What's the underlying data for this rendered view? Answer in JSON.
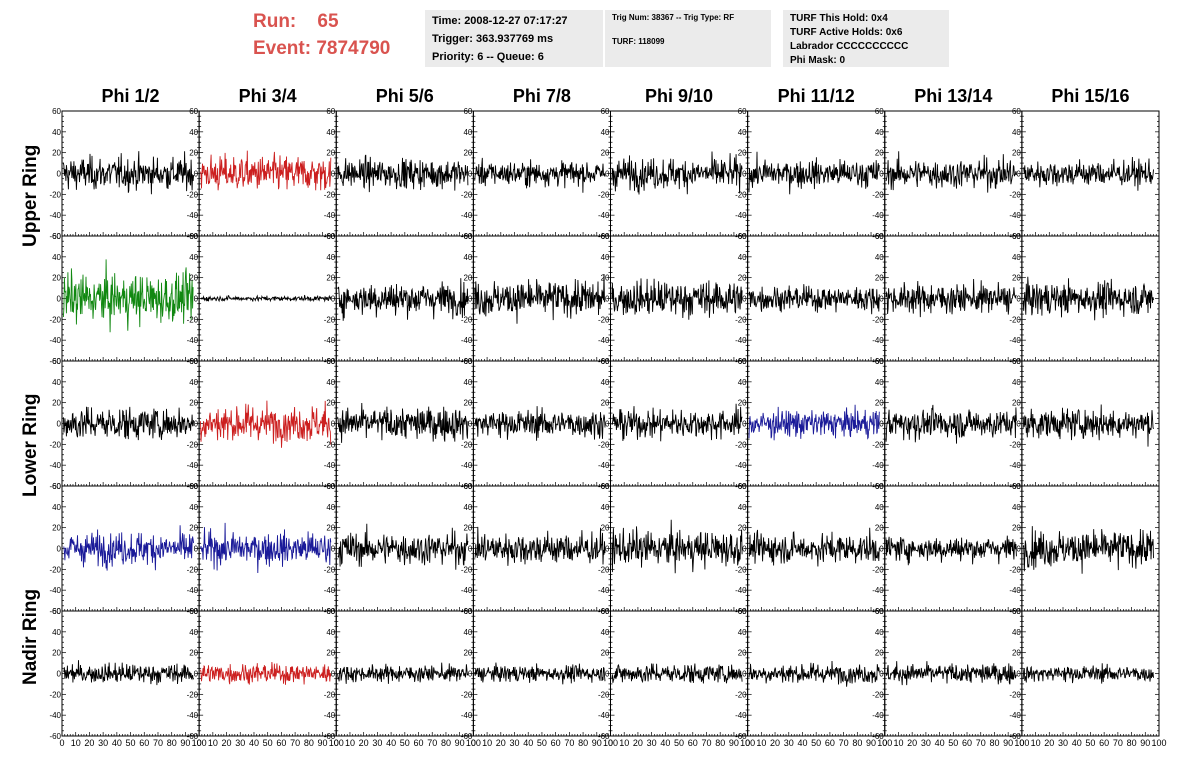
{
  "header": {
    "run_label": "Run:",
    "run_value": "65",
    "event_label": "Event:",
    "event_value": "7874790"
  },
  "info_boxes": {
    "time": "Time: 2008-12-27 07:17:27",
    "trigger": "Trigger: 363.937769 ms",
    "priority": "Priority: 6 -- Queue: 6",
    "trig_num": "Trig Num: 38367 -- Trig Type: RF",
    "turf": "TURF: 118099",
    "turf_this_hold": "TURF This Hold: 0x4",
    "turf_active_holds": "TURF Active Holds: 0x6",
    "labrador": "Labrador CCCCCCCCCC",
    "phi_mask": "Phi Mask: 0"
  },
  "colors": {
    "header_red": "#d9534f",
    "info_bg": "#ebebeb",
    "trace_black": "#000000",
    "trace_red": "#cc1f1f",
    "trace_green": "#118811",
    "trace_blue": "#1a1a99"
  },
  "chart_data": {
    "type": "line",
    "columns": [
      "Phi 1/2",
      "Phi 3/4",
      "Phi 5/6",
      "Phi 7/8",
      "Phi 9/10",
      "Phi 11/12",
      "Phi 13/14",
      "Phi 15/16"
    ],
    "rows": [
      "Upper Ring",
      "Upper Ring",
      "Lower Ring",
      "Lower Ring",
      "Nadir Ring"
    ],
    "row_labels": [
      "Upper Ring",
      "Lower Ring",
      "Nadir Ring"
    ],
    "xlim": [
      0,
      100
    ],
    "ylim": [
      -60,
      60
    ],
    "x_tick_labels": [
      "0",
      "10",
      "20",
      "30",
      "40",
      "50",
      "60",
      "70",
      "80",
      "90",
      "100"
    ],
    "y_tick_labels": [
      "60",
      "40",
      "20",
      "0",
      "-20",
      "-40",
      "-60"
    ],
    "samples_per_trace": 260,
    "trace_colors": [
      [
        "black",
        "red",
        "black",
        "black",
        "black",
        "black",
        "black",
        "black"
      ],
      [
        "green",
        "black",
        "black",
        "black",
        "black",
        "black",
        "black",
        "black"
      ],
      [
        "black",
        "red",
        "black",
        "black",
        "black",
        "blue",
        "black",
        "black"
      ],
      [
        "blue",
        "blue",
        "black",
        "black",
        "black",
        "black",
        "black",
        "black"
      ],
      [
        "black",
        "red",
        "black",
        "black",
        "black",
        "black",
        "black",
        "black"
      ]
    ],
    "trace_amplitudes": [
      [
        20,
        22,
        18,
        15,
        19,
        17,
        18,
        16
      ],
      [
        30,
        3,
        20,
        22,
        22,
        15,
        18,
        20
      ],
      [
        20,
        22,
        20,
        17,
        18,
        17,
        18,
        18
      ],
      [
        20,
        20,
        20,
        20,
        22,
        18,
        15,
        22
      ],
      [
        12,
        12,
        10,
        10,
        12,
        12,
        12,
        10
      ]
    ]
  }
}
